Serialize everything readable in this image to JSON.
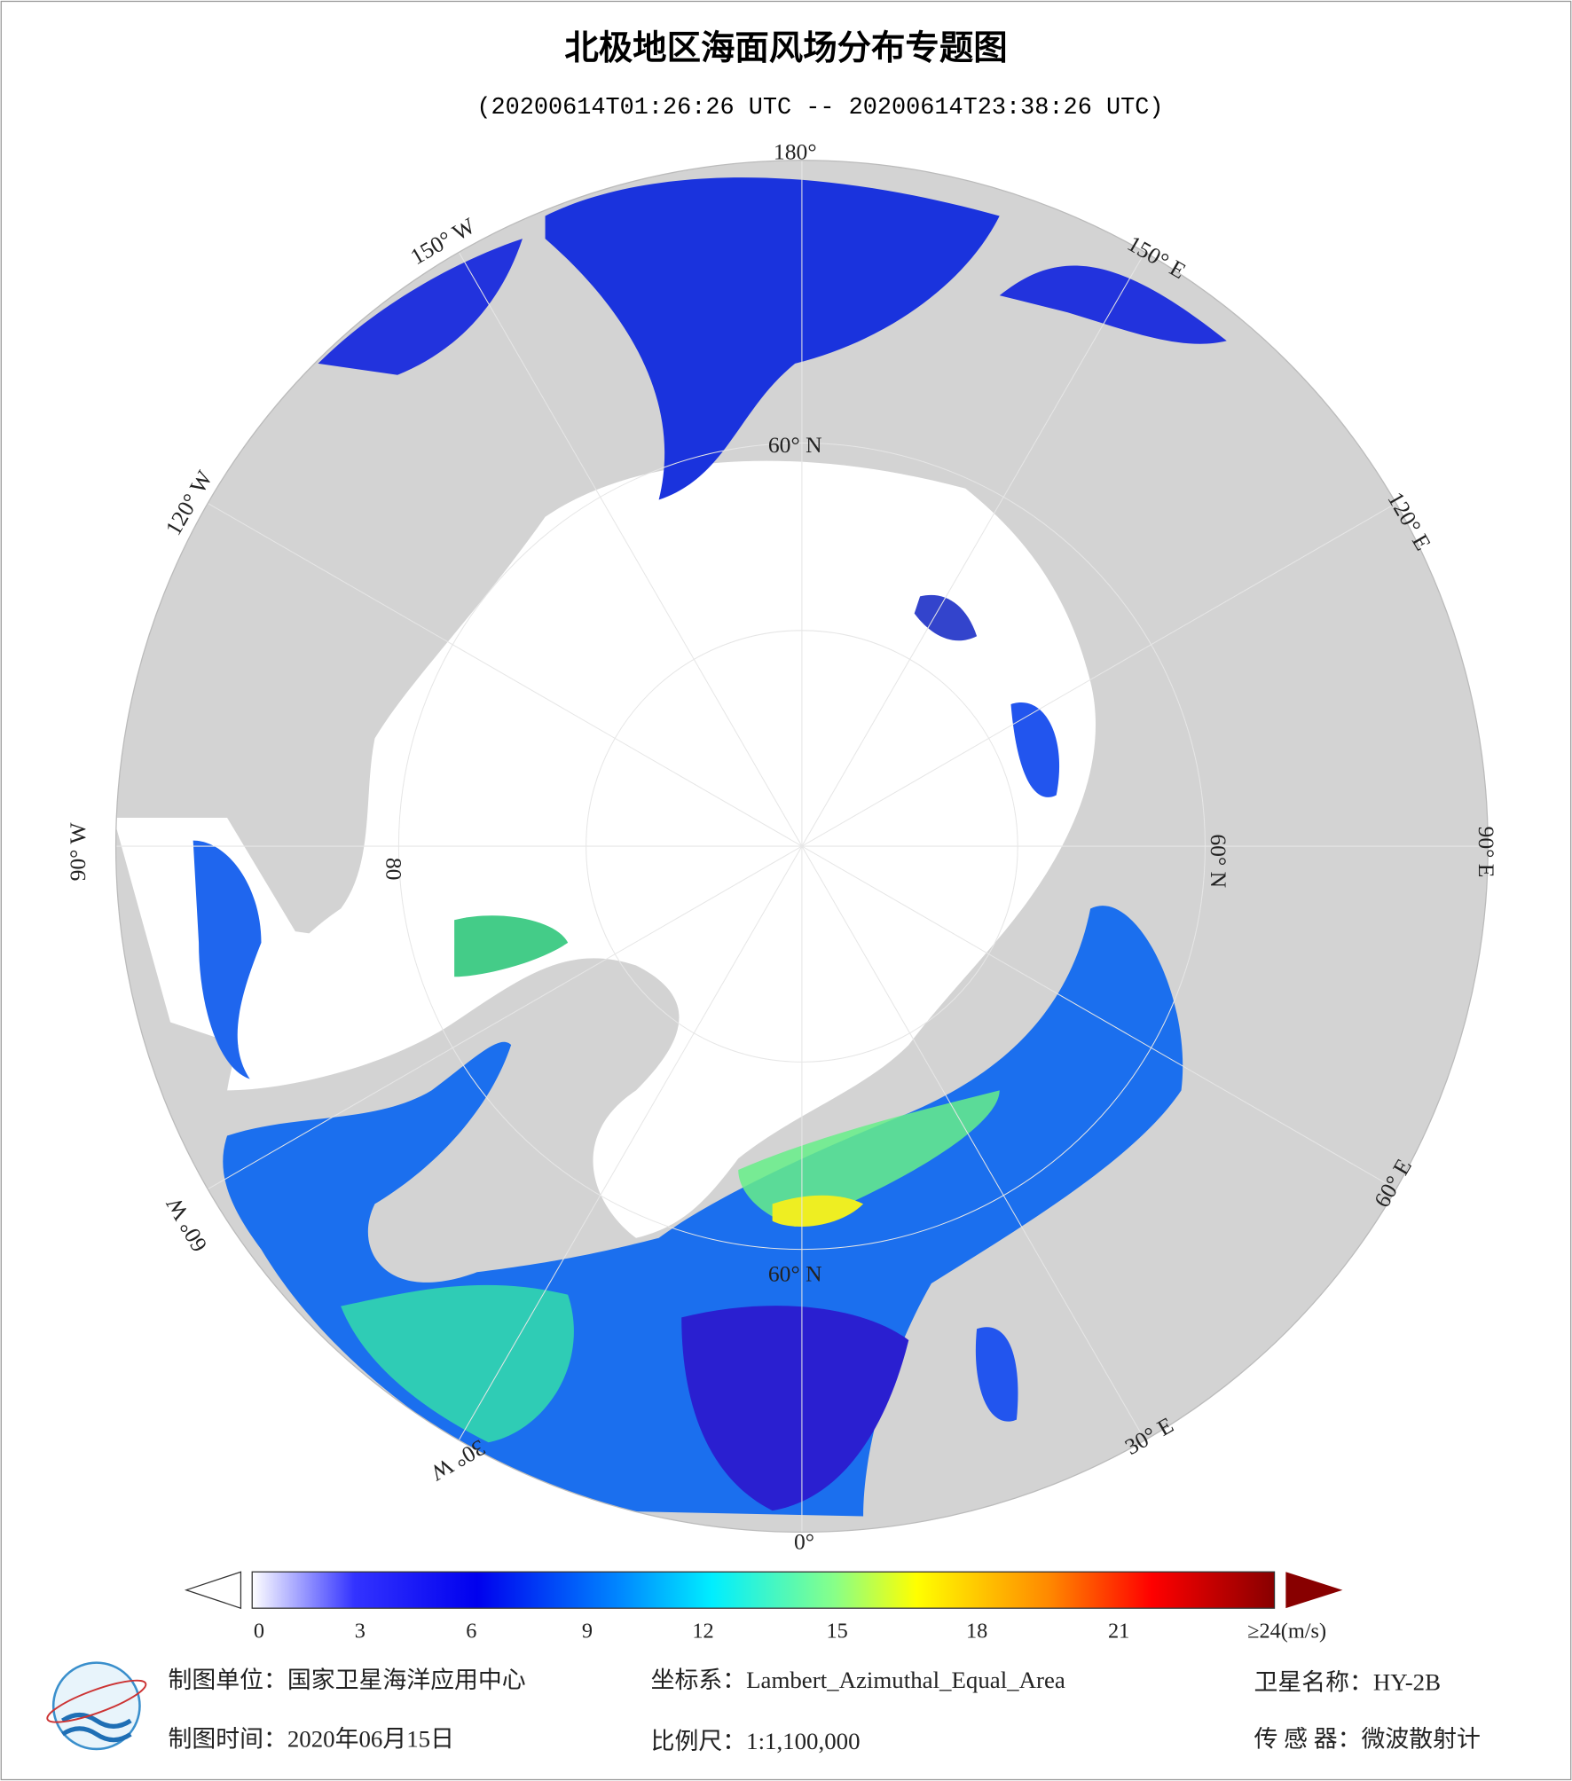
{
  "title": "北极地区海面风场分布专题图",
  "subtitle": "(20200614T01:26:26 UTC -- 20200614T23:38:26 UTC)",
  "map": {
    "longitude_labels": [
      "180°",
      "150° W",
      "120° W",
      "90° W",
      "60° W",
      "30° W",
      "0°",
      "30° E",
      "60° E",
      "90° E",
      "120° E",
      "150° E"
    ],
    "latitude_labels": [
      "60° N",
      "60° N",
      "60° N",
      "80"
    ]
  },
  "colorbar": {
    "ticks": [
      0,
      3,
      6,
      9,
      12,
      15,
      18,
      21
    ],
    "max_label": "≥24(m/s)"
  },
  "footer": {
    "unit": "制图单位：国家卫星海洋应用中心",
    "projection": "坐标系：Lambert_Azimuthal_Equal_Area",
    "satellite": "卫星名称：HY-2B",
    "date": "制图时间：2020年06月15日",
    "scale": "比例尺：1:1,100,000",
    "sensor": "传 感 器：微波散射计"
  }
}
